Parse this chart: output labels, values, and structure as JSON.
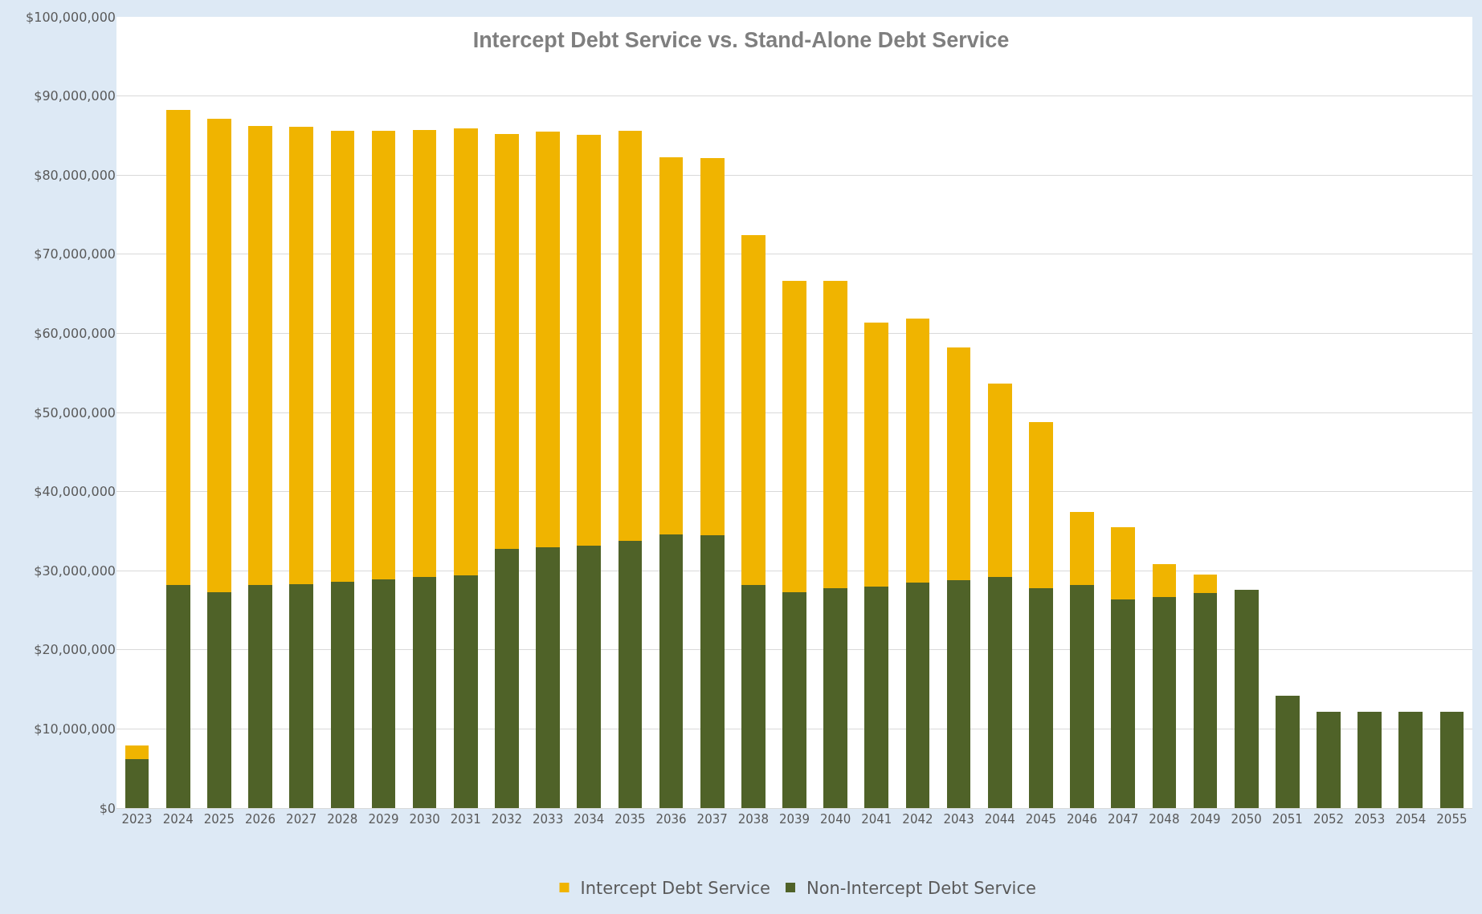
{
  "chart_data": {
    "type": "bar",
    "title": "Intercept Debt Service vs. Stand-Alone Debt Service",
    "stacked": true,
    "categories": [
      "2023",
      "2024",
      "2025",
      "2026",
      "2027",
      "2028",
      "2029",
      "2030",
      "2031",
      "2032",
      "2033",
      "2034",
      "2035",
      "2036",
      "2037",
      "2038",
      "2039",
      "2040",
      "2041",
      "2042",
      "2043",
      "2044",
      "2045",
      "2046",
      "2047",
      "2048",
      "2049",
      "2050",
      "2051",
      "2052",
      "2053",
      "2054",
      "2055"
    ],
    "series": [
      {
        "name": "Non-Intercept Debt Service",
        "color": "#4f6228",
        "values": [
          6200000,
          28200000,
          27300000,
          28200000,
          28300000,
          28600000,
          28900000,
          29200000,
          29400000,
          32800000,
          33000000,
          33200000,
          33800000,
          34600000,
          34500000,
          28200000,
          27300000,
          27800000,
          28000000,
          28500000,
          28800000,
          29200000,
          27800000,
          28200000,
          26400000,
          26700000,
          27200000,
          27600000,
          14200000,
          12200000,
          12200000,
          12200000,
          12200000
        ]
      },
      {
        "name": "Intercept Debt Service",
        "color": "#f0b400",
        "values": [
          1700000,
          60000000,
          59800000,
          58000000,
          57800000,
          57000000,
          56700000,
          56500000,
          56500000,
          52400000,
          52500000,
          51900000,
          51800000,
          47700000,
          47600000,
          44200000,
          39300000,
          38800000,
          33400000,
          33400000,
          29400000,
          24500000,
          21000000,
          9200000,
          9100000,
          4100000,
          2300000,
          null,
          null,
          null,
          null,
          null,
          null
        ]
      }
    ],
    "ylim": [
      0,
      100000000
    ],
    "yticks": [
      {
        "value": 0,
        "label": "$0"
      },
      {
        "value": 10000000,
        "label": "$10,000,000"
      },
      {
        "value": 20000000,
        "label": "$20,000,000"
      },
      {
        "value": 30000000,
        "label": "$30,000,000"
      },
      {
        "value": 40000000,
        "label": "$40,000,000"
      },
      {
        "value": 50000000,
        "label": "$50,000,000"
      },
      {
        "value": 60000000,
        "label": "$60,000,000"
      },
      {
        "value": 70000000,
        "label": "$70,000,000"
      },
      {
        "value": 80000000,
        "label": "$80,000,000"
      },
      {
        "value": 90000000,
        "label": "$90,000,000"
      },
      {
        "value": 100000000,
        "label": "$100,000,000"
      }
    ],
    "grid": "y",
    "legend": "bottom"
  }
}
